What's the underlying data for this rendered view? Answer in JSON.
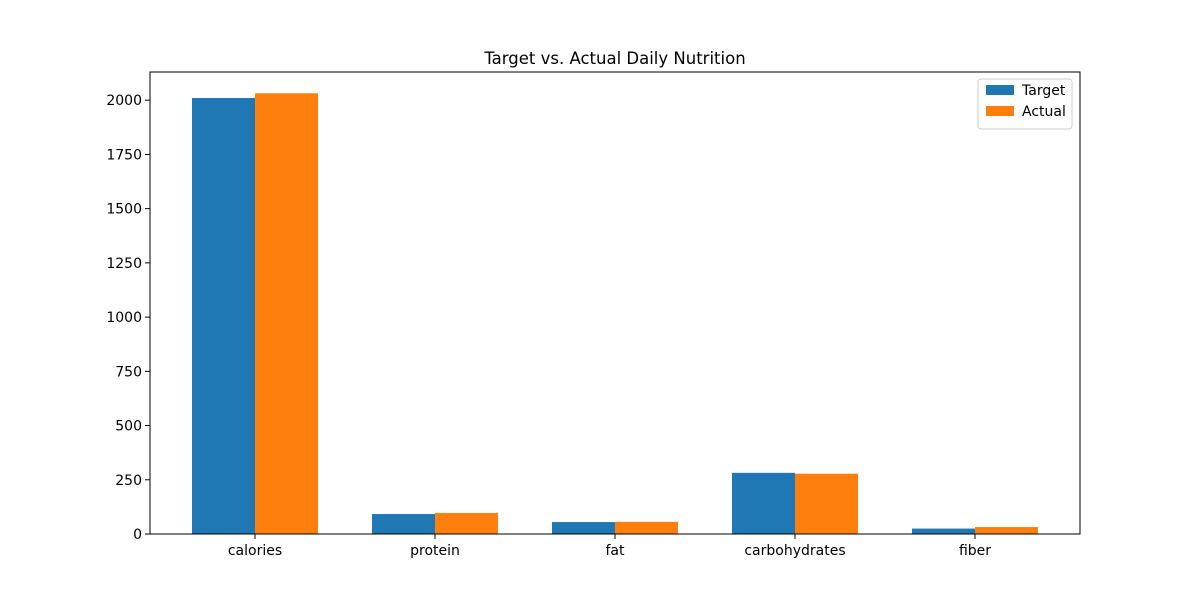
{
  "chart_data": {
    "type": "bar",
    "title": "Target vs. Actual Daily Nutrition",
    "xlabel": "",
    "ylabel": "",
    "categories": [
      "calories",
      "protein",
      "fat",
      "carbohydrates",
      "fiber"
    ],
    "series": [
      {
        "name": "Target",
        "values": [
          2010,
          92,
          55,
          282,
          25
        ],
        "color": "#1f77b4"
      },
      {
        "name": "Actual",
        "values": [
          2032,
          97,
          56,
          278,
          32
        ],
        "color": "#ff7f0e"
      }
    ],
    "ylim": [
      0,
      2130
    ],
    "yticks": [
      0,
      250,
      500,
      750,
      1000,
      1250,
      1500,
      1750,
      2000
    ],
    "grid": false,
    "legend_position": "top-right"
  }
}
